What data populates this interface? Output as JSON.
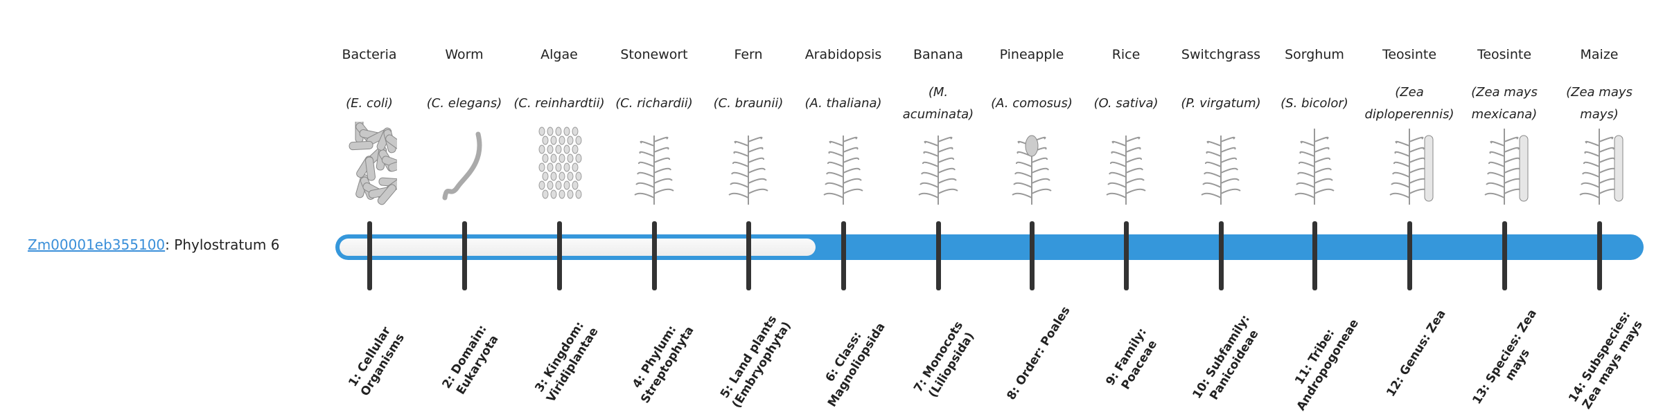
{
  "gene": {
    "id": "Zm00001eb355100",
    "suffix": ": Phylostratum 6"
  },
  "phylostratum": 6,
  "colors": {
    "accent": "#3597db",
    "tick": "#333333",
    "link": "#3a8fd9"
  },
  "strata": [
    {
      "common": "Bacteria",
      "species": "(E. coli)",
      "label": "1: Cellular Organisms",
      "icon": "bacteria-icon"
    },
    {
      "common": "Worm",
      "species": "(C. elegans)",
      "label": "2: Domain: Eukaryota",
      "icon": "worm-icon"
    },
    {
      "common": "Algae",
      "species": "(C. reinhardtii)",
      "label": "3: Kingdom: Viridiplantae",
      "icon": "algae-icon"
    },
    {
      "common": "Stonewort",
      "species": "(C. richardii)",
      "label": "4: Phylum: Streptophyta",
      "icon": "stonewort-icon"
    },
    {
      "common": "Fern",
      "species": "(C. braunii)",
      "label": "5: Land plants (Embryophyta)",
      "icon": "fern-icon"
    },
    {
      "common": "Arabidopsis",
      "species": "(A. thaliana)",
      "label": "6: Class: Magnoliopsida",
      "icon": "arabidopsis-icon"
    },
    {
      "common": "Banana",
      "species": "(M. acuminata)",
      "label": "7: Monocots (Liliopsida)",
      "icon": "banana-icon"
    },
    {
      "common": "Pineapple",
      "species": "(A. comosus)",
      "label": "8: Order: Poales",
      "icon": "pineapple-icon"
    },
    {
      "common": "Rice",
      "species": "(O. sativa)",
      "label": "9: Family: Poaceae",
      "icon": "rice-icon"
    },
    {
      "common": "Switchgrass",
      "species": "(P. virgatum)",
      "label": "10: Subfamily: Panicoideae",
      "icon": "switchgrass-icon"
    },
    {
      "common": "Sorghum",
      "species": "(S. bicolor)",
      "label": "11: Tribe: Andropogoneae",
      "icon": "sorghum-icon"
    },
    {
      "common": "Teosinte",
      "species": "(Zea diploperennis)",
      "label": "12: Genus: Zea",
      "icon": "teosinte-icon"
    },
    {
      "common": "Teosinte",
      "species": "(Zea mays mexicana)",
      "label": "13: Species: Zea mays",
      "icon": "teosinte-mexicana-icon"
    },
    {
      "common": "Maize",
      "species": "(Zea mays mays)",
      "label": "14: Subspecies: Zea mays mays",
      "icon": "maize-icon"
    }
  ]
}
